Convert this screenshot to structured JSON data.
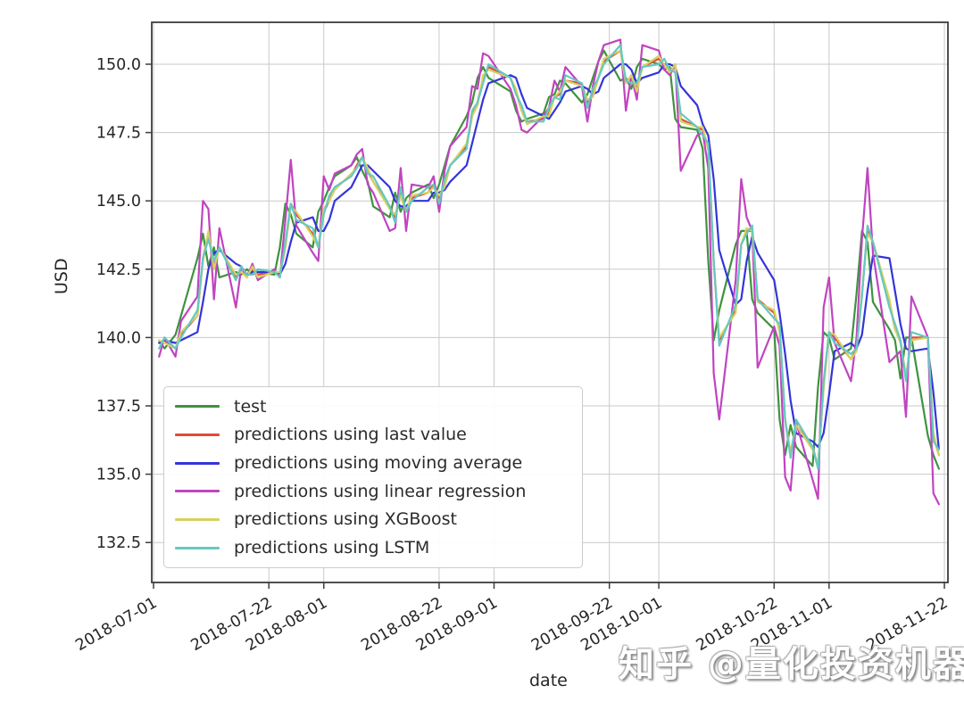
{
  "figure": {
    "watermark": "知乎 @量化投资机器学习",
    "background_color": "#ffffff",
    "grid_color": "#c9c9c9",
    "spine_color": "#3d3d3d",
    "tick_text_color": "#262626"
  },
  "chart_data": {
    "type": "line",
    "title": "",
    "xlabel": "date",
    "ylabel": "USD",
    "grid": true,
    "legend_position": "lower-left",
    "ylim": [
      131.0,
      151.5
    ],
    "xlim": [
      "2018-07-01",
      "2018-11-23"
    ],
    "y_ticks": [
      132.5,
      135.0,
      137.5,
      140.0,
      142.5,
      145.0,
      147.5,
      150.0
    ],
    "x_tick_labels": [
      "2018-07-01",
      "2018-07-22",
      "2018-08-01",
      "2018-08-22",
      "2018-09-01",
      "2018-09-22",
      "2018-10-01",
      "2018-10-22",
      "2018-11-01",
      "2018-11-22"
    ],
    "dates": [
      "2018-07-02",
      "2018-07-03",
      "2018-07-05",
      "2018-07-06",
      "2018-07-09",
      "2018-07-10",
      "2018-07-11",
      "2018-07-12",
      "2018-07-13",
      "2018-07-16",
      "2018-07-17",
      "2018-07-18",
      "2018-07-19",
      "2018-07-20",
      "2018-07-23",
      "2018-07-24",
      "2018-07-25",
      "2018-07-26",
      "2018-07-27",
      "2018-07-30",
      "2018-07-31",
      "2018-08-01",
      "2018-08-02",
      "2018-08-03",
      "2018-08-06",
      "2018-08-07",
      "2018-08-08",
      "2018-08-09",
      "2018-08-10",
      "2018-08-13",
      "2018-08-14",
      "2018-08-15",
      "2018-08-16",
      "2018-08-17",
      "2018-08-20",
      "2018-08-21",
      "2018-08-22",
      "2018-08-23",
      "2018-08-24",
      "2018-08-27",
      "2018-08-28",
      "2018-08-29",
      "2018-08-30",
      "2018-08-31",
      "2018-09-04",
      "2018-09-05",
      "2018-09-06",
      "2018-09-07",
      "2018-09-10",
      "2018-09-11",
      "2018-09-12",
      "2018-09-13",
      "2018-09-14",
      "2018-09-17",
      "2018-09-18",
      "2018-09-19",
      "2018-09-20",
      "2018-09-21",
      "2018-09-24",
      "2018-09-25",
      "2018-09-26",
      "2018-09-27",
      "2018-09-28",
      "2018-10-01",
      "2018-10-02",
      "2018-10-03",
      "2018-10-04",
      "2018-10-05",
      "2018-10-08",
      "2018-10-09",
      "2018-10-10",
      "2018-10-11",
      "2018-10-12",
      "2018-10-15",
      "2018-10-16",
      "2018-10-17",
      "2018-10-18",
      "2018-10-19",
      "2018-10-22",
      "2018-10-23",
      "2018-10-24",
      "2018-10-25",
      "2018-10-26",
      "2018-10-29",
      "2018-10-30",
      "2018-10-31",
      "2018-11-01",
      "2018-11-02",
      "2018-11-05",
      "2018-11-06",
      "2018-11-07",
      "2018-11-08",
      "2018-11-09",
      "2018-11-12",
      "2018-11-13",
      "2018-11-14",
      "2018-11-15",
      "2018-11-16",
      "2018-11-19",
      "2018-11-20",
      "2018-11-21"
    ],
    "series": [
      {
        "name": "test",
        "color": "#3f923f",
        "values": [
          139.9,
          139.6,
          140.1,
          140.8,
          142.9,
          143.8,
          142.6,
          143.3,
          142.2,
          142.4,
          142.3,
          142.5,
          142.3,
          142.4,
          142.3,
          143.3,
          144.9,
          144.5,
          143.8,
          143.3,
          144.6,
          145.0,
          145.5,
          145.9,
          146.3,
          146.6,
          146.1,
          145.7,
          144.8,
          144.4,
          145.3,
          144.6,
          145.1,
          145.3,
          145.6,
          145.1,
          145.6,
          146.3,
          147.0,
          148.1,
          148.6,
          149.5,
          149.9,
          149.5,
          149.0,
          148.3,
          147.9,
          148.0,
          148.2,
          148.8,
          148.9,
          149.4,
          149.3,
          148.6,
          148.9,
          149.5,
          150.1,
          150.5,
          149.4,
          149.5,
          149.1,
          149.9,
          150.2,
          150.0,
          149.8,
          149.9,
          148.0,
          147.7,
          147.6,
          146.9,
          142.8,
          139.9,
          141.0,
          143.4,
          143.9,
          143.9,
          141.4,
          140.9,
          140.3,
          137.0,
          135.7,
          136.8,
          136.0,
          135.3,
          138.2,
          140.2,
          140.0,
          139.2,
          139.6,
          141.6,
          143.9,
          143.5,
          141.3,
          140.3,
          139.9,
          138.5,
          140.0,
          140.0,
          136.4,
          135.7,
          135.2
        ]
      },
      {
        "name": "predictions using last value",
        "color": "#e14b3b",
        "values": [
          139.8,
          139.9,
          139.6,
          140.1,
          140.8,
          142.9,
          143.8,
          142.6,
          143.3,
          142.2,
          142.4,
          142.3,
          142.5,
          142.3,
          142.4,
          142.3,
          143.3,
          144.9,
          144.5,
          143.8,
          143.3,
          144.6,
          145.0,
          145.5,
          145.9,
          146.3,
          146.6,
          146.1,
          145.7,
          144.8,
          144.4,
          145.3,
          144.6,
          145.1,
          145.3,
          145.6,
          145.1,
          145.6,
          146.3,
          147.0,
          148.1,
          148.6,
          149.5,
          149.9,
          149.5,
          149.0,
          148.3,
          147.9,
          148.0,
          148.2,
          148.8,
          148.9,
          149.4,
          149.3,
          148.6,
          148.9,
          149.5,
          150.1,
          150.5,
          149.4,
          149.5,
          149.1,
          149.9,
          150.2,
          150.0,
          149.8,
          149.9,
          148.0,
          147.7,
          147.6,
          146.9,
          142.8,
          139.9,
          141.0,
          143.4,
          143.9,
          143.9,
          141.4,
          140.9,
          140.3,
          137.0,
          135.7,
          136.8,
          136.0,
          135.3,
          138.2,
          140.2,
          140.0,
          139.2,
          139.6,
          141.6,
          143.9,
          143.5,
          141.3,
          140.3,
          139.9,
          138.5,
          140.0,
          140.0,
          136.4,
          135.7
        ]
      },
      {
        "name": "predictions using moving average",
        "color": "#3434d8",
        "values": [
          139.8,
          139.9,
          139.8,
          139.9,
          140.2,
          141.3,
          142.5,
          143.1,
          143.2,
          142.7,
          142.6,
          142.3,
          142.4,
          142.4,
          142.4,
          142.3,
          142.7,
          143.5,
          144.2,
          144.4,
          143.9,
          143.9,
          144.3,
          145.0,
          145.5,
          145.9,
          146.3,
          146.3,
          146.1,
          145.5,
          145.0,
          144.8,
          144.8,
          145.0,
          145.0,
          145.3,
          145.3,
          145.4,
          145.7,
          146.3,
          147.1,
          147.9,
          148.7,
          149.3,
          149.6,
          149.5,
          148.9,
          148.4,
          148.1,
          148.0,
          148.3,
          148.6,
          149.0,
          149.2,
          149.1,
          148.9,
          149.0,
          149.5,
          150.0,
          150.0,
          149.8,
          149.3,
          149.5,
          149.7,
          150.0,
          150.0,
          149.9,
          149.2,
          148.5,
          147.8,
          147.4,
          145.8,
          143.2,
          141.2,
          141.4,
          142.8,
          143.7,
          143.1,
          142.1,
          140.9,
          139.4,
          137.7,
          136.5,
          136.2,
          136.0,
          136.5,
          137.9,
          139.5,
          139.8,
          139.6,
          140.1,
          141.7,
          143.0,
          142.9,
          141.7,
          140.5,
          139.6,
          139.5,
          139.6,
          138.0,
          135.9
        ]
      },
      {
        "name": "predictions using linear regression",
        "color": "#c044c0",
        "values": [
          139.3,
          140.0,
          139.3,
          140.6,
          141.5,
          145.0,
          144.7,
          141.4,
          144.0,
          141.1,
          142.6,
          142.2,
          142.7,
          142.1,
          142.5,
          142.2,
          144.3,
          146.5,
          144.1,
          143.1,
          142.8,
          145.9,
          145.4,
          146.0,
          146.3,
          146.7,
          146.9,
          145.6,
          145.3,
          143.9,
          144.0,
          146.2,
          143.9,
          145.6,
          145.5,
          145.9,
          144.6,
          146.1,
          147.0,
          147.7,
          149.2,
          149.1,
          150.4,
          150.3,
          149.1,
          148.5,
          147.6,
          147.5,
          148.1,
          148.4,
          149.4,
          149.0,
          149.9,
          149.2,
          147.9,
          149.2,
          150.1,
          150.7,
          150.9,
          148.3,
          149.6,
          148.7,
          150.7,
          150.5,
          149.8,
          149.6,
          150.0,
          146.1,
          147.4,
          147.5,
          146.2,
          138.7,
          137.0,
          142.1,
          145.8,
          144.4,
          143.9,
          138.9,
          140.4,
          139.7,
          134.9,
          134.4,
          136.9,
          134.8,
          134.1,
          141.1,
          142.2,
          139.8,
          138.4,
          140.0,
          143.6,
          146.2,
          143.1,
          139.1,
          139.3,
          139.5,
          137.1,
          141.5,
          140.0,
          134.3,
          133.9
        ]
      },
      {
        "name": "predictions using XGBoost",
        "color": "#d7d25e",
        "values": [
          139.9,
          139.8,
          139.6,
          140.2,
          140.8,
          142.8,
          143.9,
          142.5,
          143.3,
          142.3,
          142.4,
          142.2,
          142.6,
          142.2,
          142.4,
          142.4,
          143.3,
          144.8,
          144.6,
          143.7,
          143.3,
          144.7,
          145.0,
          145.4,
          146.0,
          146.2,
          146.6,
          146.2,
          145.7,
          144.7,
          144.5,
          145.2,
          144.6,
          145.2,
          145.3,
          145.5,
          145.2,
          145.5,
          146.3,
          147.1,
          148.1,
          148.5,
          149.6,
          149.8,
          149.5,
          149.1,
          148.3,
          147.8,
          148.1,
          148.1,
          148.8,
          149.0,
          149.4,
          149.2,
          148.7,
          148.8,
          149.5,
          150.2,
          150.5,
          149.3,
          149.6,
          149.0,
          149.9,
          150.3,
          150.0,
          149.7,
          150.0,
          147.9,
          147.7,
          147.7,
          146.9,
          142.7,
          140.0,
          140.9,
          143.4,
          144.0,
          143.9,
          141.3,
          141.0,
          140.2,
          137.0,
          135.8,
          136.8,
          135.9,
          135.4,
          138.1,
          140.2,
          140.1,
          139.2,
          139.5,
          141.7,
          143.8,
          143.5,
          141.4,
          140.3,
          139.8,
          138.6,
          139.9,
          140.0,
          136.5,
          135.7
        ]
      },
      {
        "name": "predictions using LSTM",
        "color": "#65c8c2",
        "values": [
          139.6,
          140.0,
          139.6,
          140.0,
          141.0,
          142.9,
          143.6,
          142.8,
          143.3,
          142.1,
          142.6,
          142.3,
          142.3,
          142.5,
          142.4,
          142.2,
          143.5,
          144.9,
          144.3,
          144.0,
          143.3,
          144.5,
          145.2,
          145.5,
          145.9,
          146.2,
          146.6,
          146.0,
          145.9,
          144.8,
          144.2,
          145.5,
          144.6,
          145.0,
          145.5,
          145.6,
          144.9,
          145.8,
          146.3,
          146.9,
          148.3,
          148.6,
          149.3,
          150.0,
          149.5,
          148.9,
          148.5,
          147.9,
          147.9,
          148.4,
          148.8,
          148.7,
          149.6,
          149.3,
          148.4,
          149.1,
          149.5,
          150.0,
          150.7,
          149.4,
          149.3,
          149.3,
          149.9,
          150.0,
          150.2,
          149.8,
          149.7,
          148.2,
          147.7,
          147.4,
          147.1,
          142.8,
          139.7,
          141.2,
          143.4,
          143.8,
          144.1,
          141.4,
          140.7,
          140.5,
          137.0,
          135.6,
          137.0,
          136.0,
          135.2,
          138.4,
          140.2,
          139.8,
          139.4,
          139.6,
          141.5,
          144.1,
          143.5,
          141.1,
          140.5,
          139.9,
          138.4,
          140.2,
          140.0,
          136.2,
          135.9
        ]
      }
    ]
  }
}
